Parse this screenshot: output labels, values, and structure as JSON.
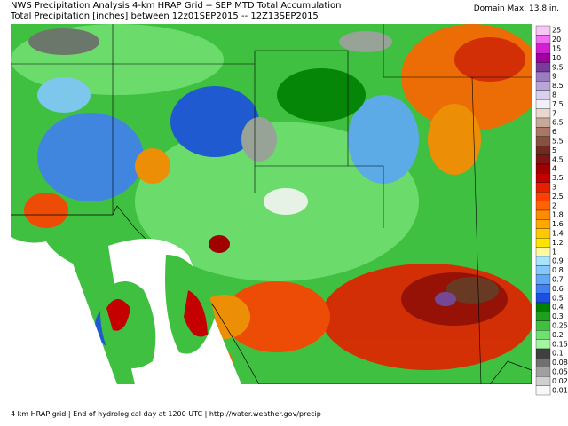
{
  "header": {
    "line1": "NWS Precipitation Analysis 4-km HRAP Grid -- SEP MTD Total Accumulation",
    "line2": "Total Precipitation [inches] between 12z01SEP2015 -- 12Z13SEP2015",
    "domain_max": "Domain Max: 13.8 in."
  },
  "legend": [
    {
      "label": "25",
      "color": "#f7c6f7"
    },
    {
      "label": "20",
      "color": "#f070f0"
    },
    {
      "label": "15",
      "color": "#d020d0"
    },
    {
      "label": "10",
      "color": "#a000a0"
    },
    {
      "label": "9.5",
      "color": "#7a3c9c"
    },
    {
      "label": "9",
      "color": "#9a7cc0"
    },
    {
      "label": "8.5",
      "color": "#b8a6d8"
    },
    {
      "label": "8",
      "color": "#d8d0ec"
    },
    {
      "label": "7.5",
      "color": "#f2f0f8"
    },
    {
      "label": "7",
      "color": "#e8d8d0"
    },
    {
      "label": "6.5",
      "color": "#c8a898"
    },
    {
      "label": "6",
      "color": "#a87864"
    },
    {
      "label": "5.5",
      "color": "#885040"
    },
    {
      "label": "5",
      "color": "#6e2c20"
    },
    {
      "label": "4.5",
      "color": "#801414"
    },
    {
      "label": "4",
      "color": "#a00000"
    },
    {
      "label": "3.5",
      "color": "#c40000"
    },
    {
      "label": "3",
      "color": "#e42000"
    },
    {
      "label": "2.5",
      "color": "#ff4000"
    },
    {
      "label": "2",
      "color": "#ff6400"
    },
    {
      "label": "1.8",
      "color": "#ff8a00"
    },
    {
      "label": "1.6",
      "color": "#ffa800"
    },
    {
      "label": "1.4",
      "color": "#ffc800"
    },
    {
      "label": "1.2",
      "color": "#ffe400"
    },
    {
      "label": "1",
      "color": "#fff8a0"
    },
    {
      "label": "0.9",
      "color": "#a8e4ff"
    },
    {
      "label": "0.8",
      "color": "#84c8ff"
    },
    {
      "label": "0.7",
      "color": "#60a8f8"
    },
    {
      "label": "0.6",
      "color": "#4080f0"
    },
    {
      "label": "0.5",
      "color": "#1c50e0"
    },
    {
      "label": "0.4",
      "color": "#008000"
    },
    {
      "label": "0.3",
      "color": "#1ea01e"
    },
    {
      "label": "0.25",
      "color": "#40c040"
    },
    {
      "label": "0.2",
      "color": "#70e070"
    },
    {
      "label": "0.15",
      "color": "#a4f4a4"
    },
    {
      "label": "0.1",
      "color": "#404040"
    },
    {
      "label": "0.08",
      "color": "#707070"
    },
    {
      "label": "0.05",
      "color": "#a0a0a0"
    },
    {
      "label": "0.02",
      "color": "#d0d0d0"
    },
    {
      "label": "0.01",
      "color": "#f8f8f8"
    }
  ],
  "footer": "4 km HRAP grid | End of hydrological day at 1200 UTC | http://water.weather.gov/precip"
}
